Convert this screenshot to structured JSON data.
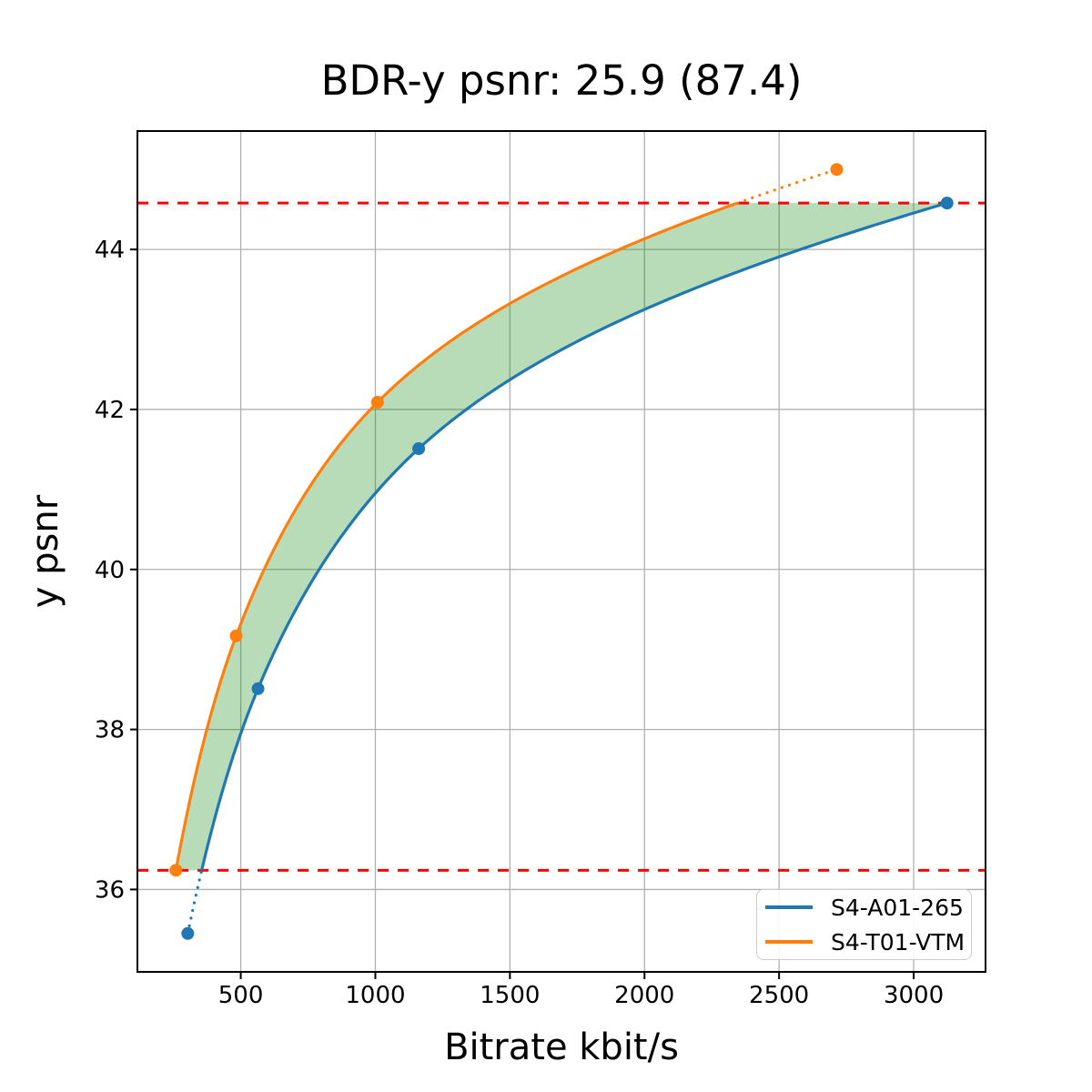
{
  "page": {
    "background": "#ffffff"
  },
  "chart_data": {
    "type": "line",
    "title": "BDR-y psnr: 25.9 (87.4)",
    "xlabel": "Bitrate kbit/s",
    "ylabel": "y psnr",
    "xlim": [
      116,
      3267
    ],
    "ylim": [
      34.97,
      45.48
    ],
    "xticks": [
      500,
      1000,
      1500,
      2000,
      2500,
      3000
    ],
    "yticks": [
      36,
      38,
      40,
      42,
      44
    ],
    "grid": true,
    "grid_color": "#b0b0b0",
    "legend_position": "lower-right",
    "interpolation": "pchip-log-bitrate",
    "series": [
      {
        "name": "S4-A01-265",
        "color": "#1f77b4",
        "points": [
          [
            303,
            35.45
          ],
          [
            564,
            38.51
          ],
          [
            1161,
            41.51
          ],
          [
            3124,
            44.58
          ]
        ]
      },
      {
        "name": "S4-T01-VTM",
        "color": "#ff7f0e",
        "points": [
          [
            259,
            36.24
          ],
          [
            483,
            39.17
          ],
          [
            1008,
            42.09
          ],
          [
            2714,
            45.0
          ]
        ]
      }
    ],
    "overlap_psnr_lines": {
      "low": 36.24,
      "high": 44.58,
      "color": "#ff0000",
      "style": "dashed"
    },
    "fill_between": {
      "color": "#008000",
      "opacity": 0.28
    }
  }
}
